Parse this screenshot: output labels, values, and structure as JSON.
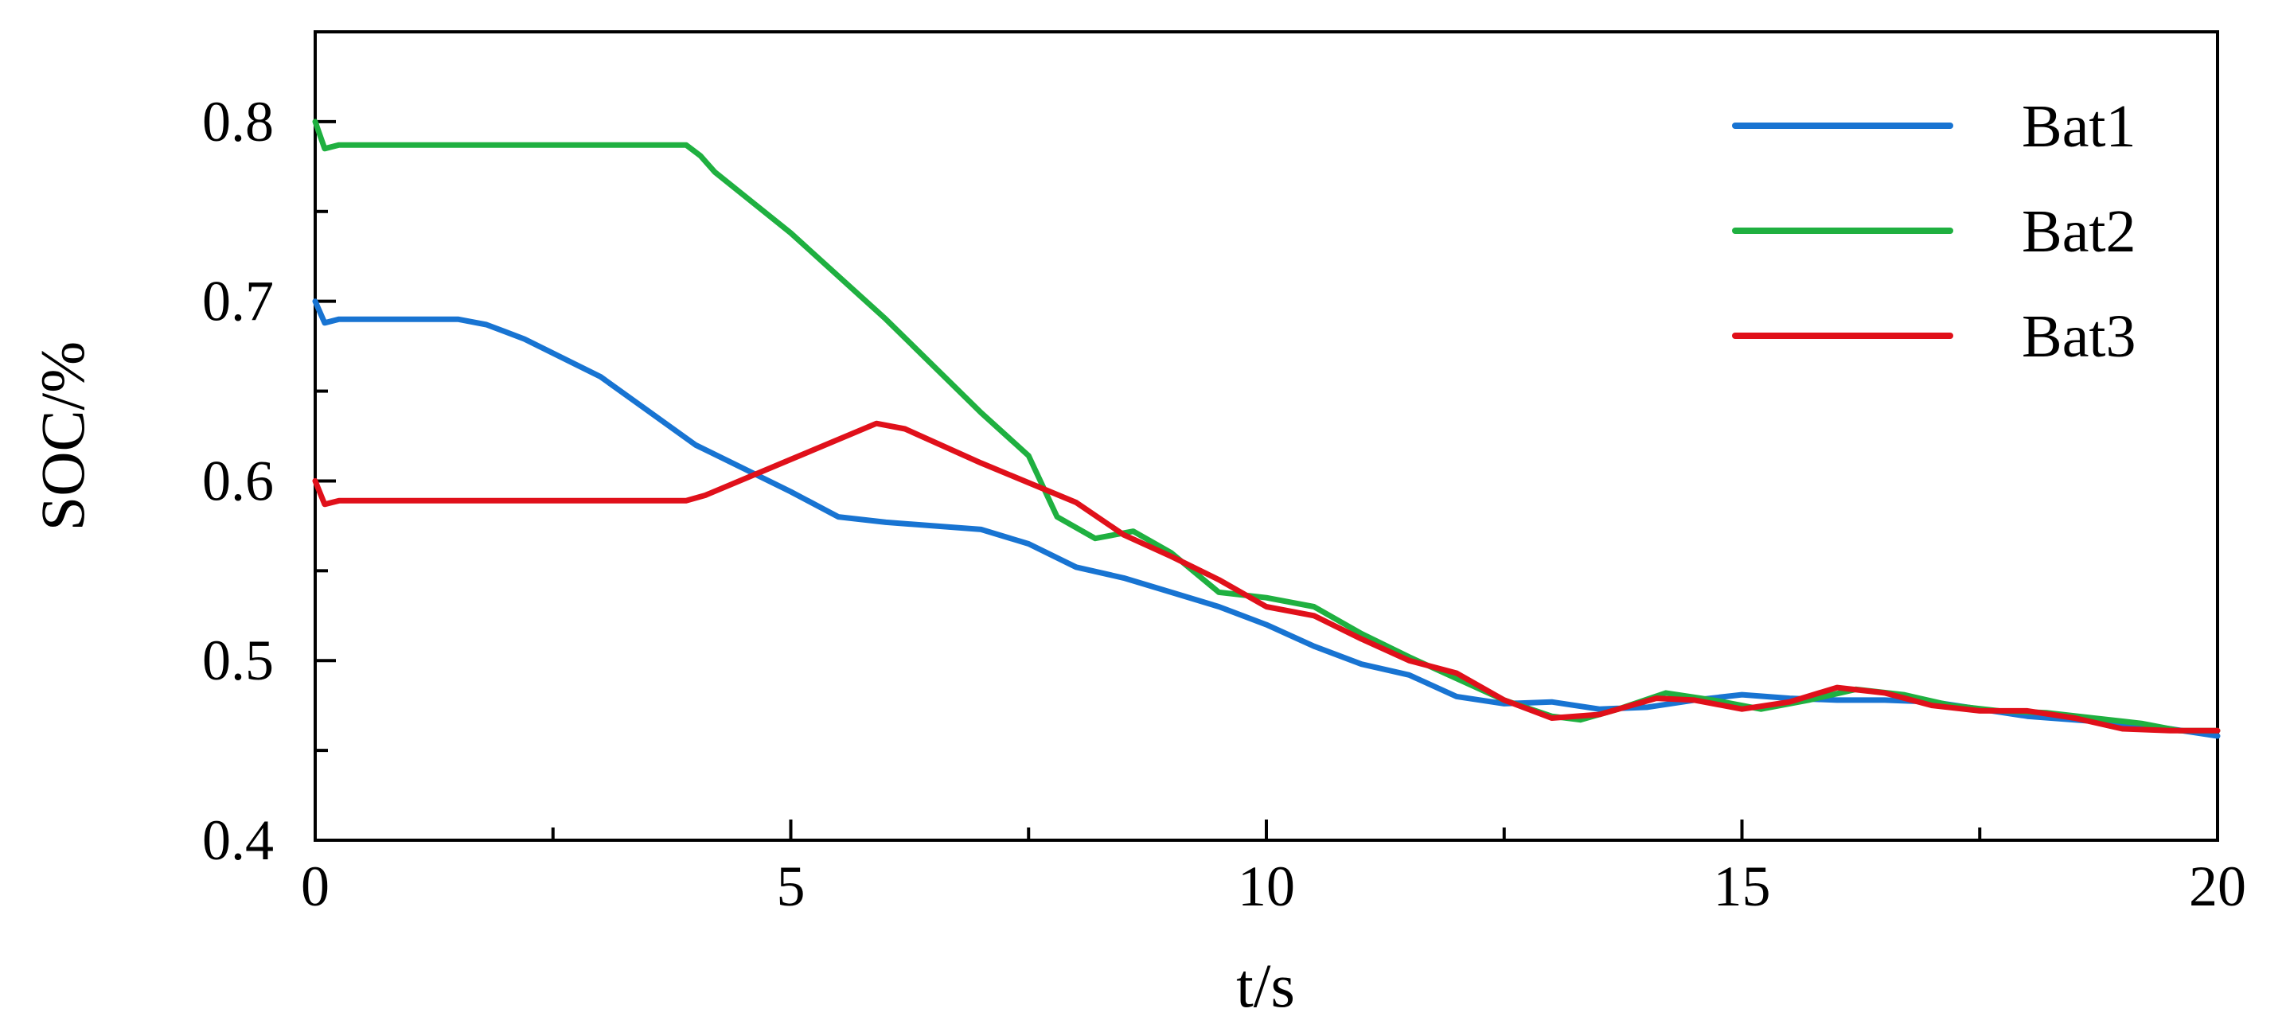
{
  "chart_data": {
    "type": "line",
    "title": "",
    "xlabel": "t/s",
    "ylabel": "SOC/%",
    "xlim": [
      0,
      20
    ],
    "ylim": [
      0.4,
      0.85
    ],
    "xticks": [
      0,
      5,
      10,
      15,
      20
    ],
    "xtick_labels": [
      "0",
      "5",
      "10",
      "15",
      "20"
    ],
    "x_minor_ticks": [
      2.5,
      7.5,
      12.5,
      17.5
    ],
    "yticks": [
      0.4,
      0.5,
      0.6,
      0.7,
      0.8
    ],
    "ytick_labels": [
      "0.4",
      "0.5",
      "0.6",
      "0.7",
      "0.8"
    ],
    "y_minor_ticks": [
      0.45,
      0.55,
      0.65,
      0.75
    ],
    "grid": false,
    "legend_position": "top-right",
    "series": [
      {
        "name": "Bat1",
        "color": "#1874d2",
        "points": [
          [
            0,
            0.7
          ],
          [
            0.1,
            0.688
          ],
          [
            0.25,
            0.69
          ],
          [
            1.5,
            0.69
          ],
          [
            1.8,
            0.687
          ],
          [
            2.2,
            0.679
          ],
          [
            3,
            0.658
          ],
          [
            4,
            0.62
          ],
          [
            4.5,
            0.607
          ],
          [
            5,
            0.594
          ],
          [
            5.5,
            0.58
          ],
          [
            6,
            0.577
          ],
          [
            7,
            0.573
          ],
          [
            7.5,
            0.565
          ],
          [
            8,
            0.552
          ],
          [
            8.5,
            0.546
          ],
          [
            9,
            0.538
          ],
          [
            9.5,
            0.53
          ],
          [
            10,
            0.52
          ],
          [
            10.5,
            0.508
          ],
          [
            11,
            0.498
          ],
          [
            11.5,
            0.492
          ],
          [
            12,
            0.48
          ],
          [
            12.5,
            0.476
          ],
          [
            13,
            0.477
          ],
          [
            13.5,
            0.473
          ],
          [
            14,
            0.474
          ],
          [
            14.5,
            0.478
          ],
          [
            15,
            0.481
          ],
          [
            15.5,
            0.479
          ],
          [
            16,
            0.478
          ],
          [
            16.5,
            0.478
          ],
          [
            17,
            0.477
          ],
          [
            17.5,
            0.473
          ],
          [
            18,
            0.469
          ],
          [
            18.5,
            0.467
          ],
          [
            19,
            0.465
          ],
          [
            19.5,
            0.462
          ],
          [
            20,
            0.458
          ]
        ]
      },
      {
        "name": "Bat2",
        "color": "#1fb040",
        "points": [
          [
            0,
            0.8
          ],
          [
            0.1,
            0.785
          ],
          [
            0.25,
            0.787
          ],
          [
            3.9,
            0.787
          ],
          [
            4.05,
            0.781
          ],
          [
            4.2,
            0.772
          ],
          [
            5,
            0.738
          ],
          [
            6,
            0.69
          ],
          [
            7,
            0.638
          ],
          [
            7.5,
            0.614
          ],
          [
            7.8,
            0.58
          ],
          [
            8.2,
            0.568
          ],
          [
            8.6,
            0.572
          ],
          [
            9,
            0.56
          ],
          [
            9.5,
            0.538
          ],
          [
            10,
            0.535
          ],
          [
            10.5,
            0.53
          ],
          [
            11,
            0.515
          ],
          [
            11.5,
            0.502
          ],
          [
            12,
            0.49
          ],
          [
            12.5,
            0.478
          ],
          [
            13,
            0.469
          ],
          [
            13.3,
            0.467
          ],
          [
            13.7,
            0.473
          ],
          [
            14.2,
            0.482
          ],
          [
            14.7,
            0.478
          ],
          [
            15.2,
            0.473
          ],
          [
            15.7,
            0.478
          ],
          [
            16.2,
            0.484
          ],
          [
            16.7,
            0.481
          ],
          [
            17.2,
            0.475
          ],
          [
            17.7,
            0.472
          ],
          [
            18.2,
            0.471
          ],
          [
            18.7,
            0.468
          ],
          [
            19.2,
            0.465
          ],
          [
            19.6,
            0.461
          ],
          [
            20,
            0.461
          ]
        ]
      },
      {
        "name": "Bat3",
        "color": "#e0101a",
        "points": [
          [
            0,
            0.6
          ],
          [
            0.1,
            0.587
          ],
          [
            0.25,
            0.589
          ],
          [
            3.9,
            0.589
          ],
          [
            4.1,
            0.592
          ],
          [
            5,
            0.612
          ],
          [
            5.9,
            0.632
          ],
          [
            6.2,
            0.629
          ],
          [
            7,
            0.61
          ],
          [
            8,
            0.588
          ],
          [
            8.5,
            0.57
          ],
          [
            9,
            0.558
          ],
          [
            9.5,
            0.545
          ],
          [
            10,
            0.53
          ],
          [
            10.5,
            0.525
          ],
          [
            11,
            0.512
          ],
          [
            11.5,
            0.5
          ],
          [
            12,
            0.493
          ],
          [
            12.5,
            0.478
          ],
          [
            13,
            0.468
          ],
          [
            13.5,
            0.47
          ],
          [
            14.1,
            0.479
          ],
          [
            14.5,
            0.478
          ],
          [
            15,
            0.473
          ],
          [
            15.5,
            0.477
          ],
          [
            16,
            0.485
          ],
          [
            16.5,
            0.482
          ],
          [
            17,
            0.475
          ],
          [
            17.5,
            0.472
          ],
          [
            18,
            0.472
          ],
          [
            18.5,
            0.468
          ],
          [
            19,
            0.462
          ],
          [
            19.5,
            0.461
          ],
          [
            20,
            0.461
          ]
        ]
      }
    ]
  }
}
